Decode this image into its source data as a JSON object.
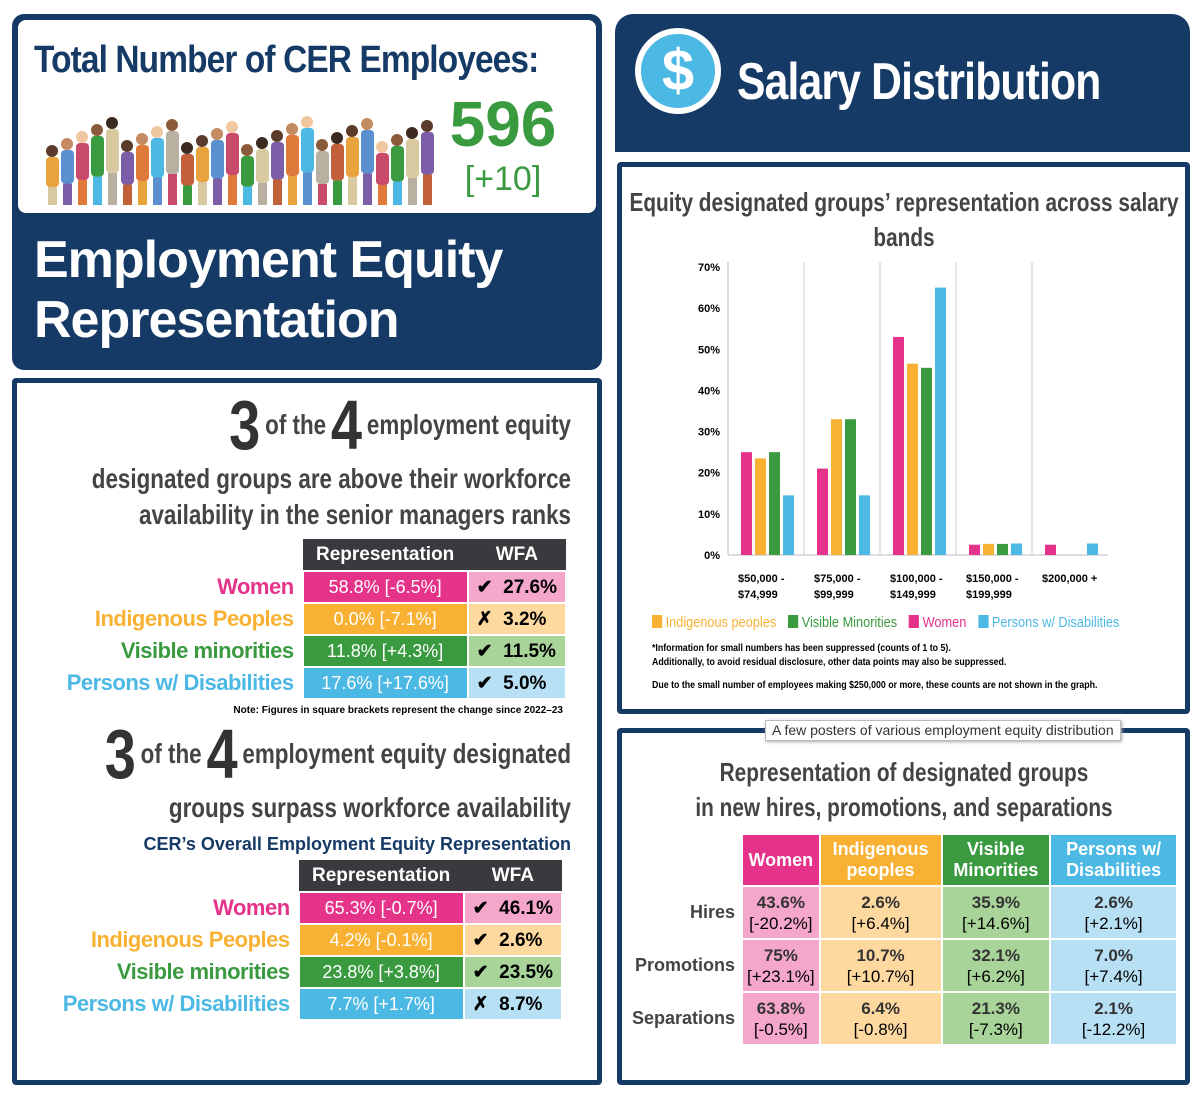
{
  "colors": {
    "navy": "#163a66",
    "women": "#e5338a",
    "indigenous": "#f8b133",
    "visible_minorities": "#3a9a40",
    "disabilities": "#4cb8e4"
  },
  "header": {
    "title": "Total Number of CER Employees:",
    "total": "596",
    "change": "[+10]",
    "section_title_1": "Employment Equity",
    "section_title_2": "Representation"
  },
  "salary": {
    "icon": "dollar-icon",
    "icon_glyph": "$",
    "title": "Salary Distribution"
  },
  "senior": {
    "big1": "3",
    "of_the": "of the",
    "big2": "4",
    "line1": "employment equity",
    "line2": "designated groups are above their workforce",
    "line3": "availability in the senior managers ranks",
    "col_rep": "Representation",
    "col_wfa": "WFA",
    "rows": [
      {
        "label": "Women",
        "rep": "58.8% [-6.5%]",
        "mark": "✔",
        "wfa": "27.6%"
      },
      {
        "label": "Indigenous Peoples",
        "rep": "0.0% [-7.1%]",
        "mark": "✗",
        "wfa": "3.2%"
      },
      {
        "label": "Visible minorities",
        "rep": "11.8% [+4.3%]",
        "mark": "✔",
        "wfa": "11.5%"
      },
      {
        "label": "Persons w/ Disabilities",
        "rep": "17.6% [+17.6%]",
        "mark": "✔",
        "wfa": "5.0%"
      }
    ],
    "note": "Note: Figures in square brackets represent the change since 2022–23"
  },
  "overall": {
    "big1": "3",
    "of_the": "of the",
    "big2": "4",
    "line1": "employment equity designated",
    "line2": "groups surpass workforce availability",
    "subtitle": "CER’s Overall Employment Equity Representation",
    "col_rep": "Representation",
    "col_wfa": "WFA",
    "rows": [
      {
        "label": "Women",
        "rep": "65.3% [-0.7%]",
        "mark": "✔",
        "wfa": "46.1%"
      },
      {
        "label": "Indigenous Peoples",
        "rep": "4.2% [-0.1%]",
        "mark": "✔",
        "wfa": "2.6%"
      },
      {
        "label": "Visible minorities",
        "rep": "23.8% [+3.8%]",
        "mark": "✔",
        "wfa": "23.5%"
      },
      {
        "label": "Persons w/ Disabilities",
        "rep": "7.7% [+1.7%]",
        "mark": "✗",
        "wfa": "8.7%"
      }
    ]
  },
  "chart_data": {
    "type": "bar",
    "title": "Equity designated groups’ representation across salary bands",
    "categories": [
      "$50,000 - $74,999",
      "$75,000 - $99,999",
      "$100,000 - $149,999",
      "$150,000 - $199,999",
      "$200,000 +"
    ],
    "category_lines": [
      [
        "$50,000 -",
        "$74,999"
      ],
      [
        "$75,000 -",
        "$99,999"
      ],
      [
        "$100,000 -",
        "$149,999"
      ],
      [
        "$150,000 -",
        "$199,999"
      ],
      [
        "$200,000 +",
        ""
      ]
    ],
    "series": [
      {
        "name": "Women",
        "color": "#e5338a",
        "values": [
          25,
          21,
          53,
          2.5,
          2.5
        ]
      },
      {
        "name": "Indigenous peoples",
        "color": "#f8b133",
        "values": [
          23.5,
          33,
          46.5,
          2.7,
          null
        ]
      },
      {
        "name": "Visible Minorities",
        "color": "#3a9a40",
        "values": [
          25,
          33,
          45.5,
          2.7,
          null
        ]
      },
      {
        "name": "Persons w/ Disabilities",
        "color": "#4cb8e4",
        "values": [
          14.5,
          14.5,
          65,
          2.8,
          2.8
        ]
      }
    ],
    "legend_order": [
      1,
      2,
      0,
      3
    ],
    "ylim": [
      0,
      70
    ],
    "yticks": [
      "0%",
      "10%",
      "20%",
      "30%",
      "40%",
      "50%",
      "60%",
      "70%"
    ],
    "legend": "bottom",
    "notes": [
      "*Information for small numbers has been suppressed (counts of 1 to 5).",
      "Additionally, to avoid residual disclosure, other data points may also be suppressed.",
      "Due to the small number of employees making $250,000 or more, these counts are not shown in the graph."
    ]
  },
  "tooltip": "A few posters of various employment equity distribution",
  "movement": {
    "title1": "Representation of designated groups",
    "title2": "in new hires, promotions, and separations",
    "cols": [
      "Women",
      "Indigenous peoples",
      "Visible Minorities",
      "Persons w/ Disabilities"
    ],
    "rows": [
      {
        "label": "Hires",
        "cells": [
          [
            "43.6%",
            "[-20.2%]"
          ],
          [
            "2.6%",
            "[+6.4%]"
          ],
          [
            "35.9%",
            "[+14.6%]"
          ],
          [
            "2.6%",
            "[+2.1%]"
          ]
        ]
      },
      {
        "label": "Promotions",
        "cells": [
          [
            "75%",
            "[+23.1%]"
          ],
          [
            "10.7%",
            "[+10.7%]"
          ],
          [
            "32.1%",
            "[+6.2%]"
          ],
          [
            "7.0%",
            "[+7.4%]"
          ]
        ]
      },
      {
        "label": "Separations",
        "cells": [
          [
            "63.8%",
            "[-0.5%]"
          ],
          [
            "6.4%",
            "[-0.8%]"
          ],
          [
            "21.3%",
            "[-7.3%]"
          ],
          [
            "2.1%",
            "[-12.2%]"
          ]
        ]
      }
    ]
  }
}
